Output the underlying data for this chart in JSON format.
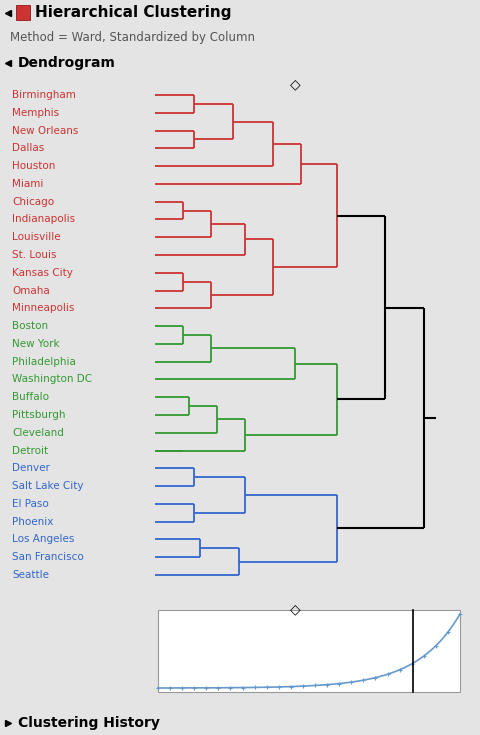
{
  "title": "Hierarchical Clustering",
  "subtitle": "Method = Ward, Standardized by Column",
  "section1": "Dendrogram",
  "section2": "Clustering History",
  "bg_color": "#e4e4e4",
  "panel_bg": "#ffffff",
  "header_bg": "#d0d0d0",
  "cities_red": [
    "Birmingham",
    "Memphis",
    "New Orleans",
    "Dallas",
    "Houston",
    "Miami",
    "Chicago",
    "Indianapolis",
    "Louisville",
    "St. Louis",
    "Kansas City",
    "Omaha",
    "Minneapolis"
  ],
  "cities_green": [
    "Boston",
    "New York",
    "Philadelphia",
    "Washington DC",
    "Buffalo",
    "Pittsburgh",
    "Cleveland",
    "Detroit"
  ],
  "cities_blue": [
    "Denver",
    "Salt Lake City",
    "El Paso",
    "Phoenix",
    "Los Angeles",
    "San Francisco",
    "Seattle"
  ],
  "color_red": "#cc3333",
  "color_green": "#339933",
  "color_blue": "#3366cc",
  "history_line_color": "#6699cc",
  "history_vline_x": 0.845
}
